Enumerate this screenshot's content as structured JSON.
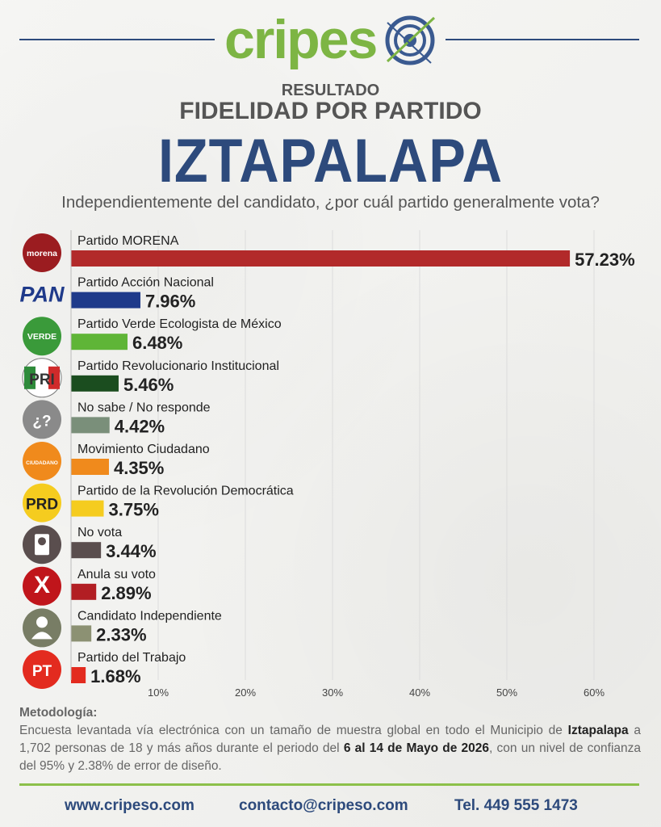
{
  "brand": {
    "logo_left": "cripes",
    "logo_right": "o"
  },
  "header": {
    "kicker": "RESULTADO",
    "subtitle": "FIDELIDAD POR PARTIDO",
    "title": "IZTAPALAPA",
    "question": "Independientemente del candidato, ¿por cuál partido generalmente vota?"
  },
  "colors": {
    "accent": "#2d4a7c",
    "brand_green": "#7db544",
    "footer_line": "#8cc04a"
  },
  "chart_data": {
    "type": "bar",
    "orientation": "horizontal",
    "grid": true,
    "xlim": [
      0,
      65
    ],
    "tick_labels": [
      "10%",
      "20%",
      "30%",
      "40%",
      "50%",
      "60%"
    ],
    "ticks": [
      10,
      20,
      30,
      40,
      50,
      60
    ],
    "categories": [
      {
        "name": "Partido MORENA",
        "value": 57.23,
        "label": "57.23%",
        "color": "#b22a2a",
        "icon": "morena-logo-icon",
        "icon_text": "morena"
      },
      {
        "name": "Partido Acción Nacional",
        "value": 7.96,
        "label": "7.96%",
        "color": "#1f3a8a",
        "icon": "pan-logo-icon",
        "icon_text": "PAN"
      },
      {
        "name": "Partido Verde Ecologista de México",
        "value": 6.48,
        "label": "6.48%",
        "color": "#5fb537",
        "icon": "verde-logo-icon",
        "icon_text": "VERDE"
      },
      {
        "name": "Partido Revolucionario Institucional",
        "value": 5.46,
        "label": "5.46%",
        "color": "#1b4d1f",
        "icon": "pri-logo-icon",
        "icon_text": "PRI"
      },
      {
        "name": "No sabe / No responde",
        "value": 4.42,
        "label": "4.42%",
        "color": "#7a8f7a",
        "icon": "question-icon",
        "icon_text": "¿?"
      },
      {
        "name": "Movimiento Ciudadano",
        "value": 4.35,
        "label": "4.35%",
        "color": "#f08a1c",
        "icon": "movimiento-ciudadano-logo-icon",
        "icon_text": "CIUDADANO"
      },
      {
        "name": "Partido de la Revolución Democrática",
        "value": 3.75,
        "label": "3.75%",
        "color": "#f5cc1f",
        "icon": "prd-logo-icon",
        "icon_text": "PRD"
      },
      {
        "name": "No vota",
        "value": 3.44,
        "label": "3.44%",
        "color": "#5a4e4e",
        "icon": "ballot-icon",
        "icon_text": ""
      },
      {
        "name": "Anula su voto",
        "value": 2.89,
        "label": "2.89%",
        "color": "#b21e23",
        "icon": "x-cross-icon",
        "icon_text": "X"
      },
      {
        "name": "Candidato Independiente",
        "value": 2.33,
        "label": "2.33%",
        "color": "#8c9173",
        "icon": "person-icon",
        "icon_text": ""
      },
      {
        "name": "Partido del Trabajo",
        "value": 1.68,
        "label": "1.68%",
        "color": "#e32b1f",
        "icon": "pt-logo-icon",
        "icon_text": "PT"
      }
    ]
  },
  "methodology": {
    "heading": "Metodología:",
    "p1": "Encuesta levantada vía electrónica con un tamaño de muestra global en todo el Municipio de ",
    "place": "Iztapalapa",
    "p2": " a 1,702 personas de 18 y más años durante el periodo del ",
    "period": "6 al 14 de Mayo de 2026",
    "p3": ", con un nivel de confianza del 95% y 2.38% de error de diseño."
  },
  "footer": {
    "website": "www.cripeso.com",
    "email": "contacto@cripeso.com",
    "phone": "Tel. 449 555 1473"
  }
}
